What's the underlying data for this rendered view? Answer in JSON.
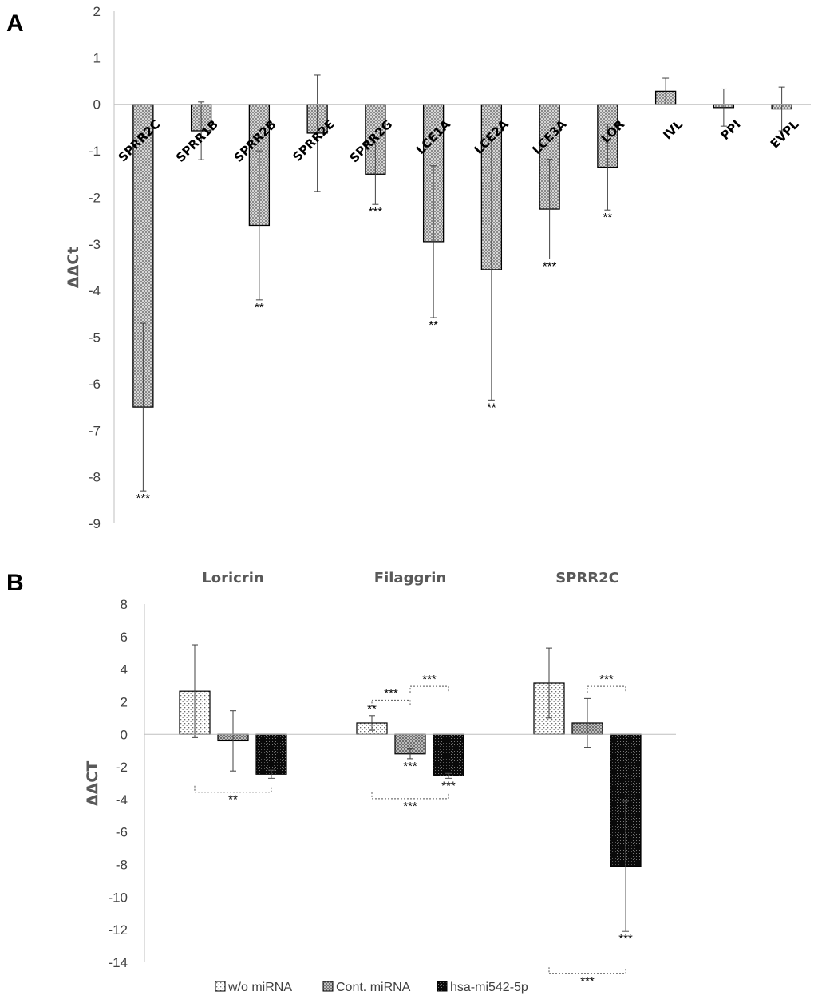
{
  "chart_data": [
    {
      "type": "bar",
      "panel_label": "A",
      "ylabel": "ΔΔCt",
      "ylim": [
        -9,
        2
      ],
      "yticks": [
        2,
        1,
        0,
        -1,
        -2,
        -3,
        -4,
        -5,
        -6,
        -7,
        -8,
        -9
      ],
      "categories": [
        "SPRR2C",
        "SPRR1B",
        "SPRR2B",
        "SPRR2E",
        "SPRR2G",
        "LCE1A",
        "LCE2A",
        "LCE3A",
        "LOR",
        "IVL",
        "PPI",
        "EVPL"
      ],
      "values": [
        -6.5,
        -0.57,
        -2.6,
        -0.62,
        -1.5,
        -2.95,
        -3.55,
        -2.25,
        -1.35,
        0.28,
        -0.07,
        -0.1
      ],
      "error": [
        1.8,
        0.62,
        1.6,
        1.25,
        0.65,
        1.63,
        2.8,
        1.07,
        0.92,
        0.28,
        0.4,
        0.47
      ],
      "significance": [
        "***",
        "",
        "**",
        "",
        "***",
        "**",
        "**",
        "***",
        "**",
        "",
        "",
        ""
      ],
      "colors": {
        "bar_fill": "#c4c4c4",
        "bar_stroke": "#000000"
      }
    },
    {
      "type": "bar",
      "panel_label": "B",
      "ylabel": "ΔΔCT",
      "ylim": [
        -14,
        8
      ],
      "yticks": [
        8,
        6,
        4,
        2,
        0,
        -2,
        -4,
        -6,
        -8,
        -10,
        -12,
        -14
      ],
      "categories": [
        "Loricrin",
        "Filaggrin",
        "SPRR2C"
      ],
      "series": [
        {
          "name": "w/o miRNA",
          "values": [
            2.65,
            0.7,
            3.15
          ],
          "error": [
            2.85,
            0.45,
            2.15
          ],
          "significance": [
            "",
            "**",
            ""
          ],
          "color": "#f2f2f2"
        },
        {
          "name": "Cont. miRNA",
          "values": [
            -0.4,
            -1.2,
            0.7
          ],
          "error": [
            1.85,
            0.3,
            1.5
          ],
          "significance": [
            "",
            "***",
            ""
          ],
          "color": "#9e9e9e"
        },
        {
          "name": "hsa-mi542-5p",
          "values": [
            -2.45,
            -2.55,
            -8.1
          ],
          "error": [
            0.25,
            0.15,
            4.0
          ],
          "significance": [
            "",
            "***",
            "***"
          ],
          "color": "#111111"
        }
      ],
      "comparisons": [
        {
          "group": "Loricrin",
          "from": "w/o miRNA",
          "to": "hsa-mi542-5p",
          "label": "**",
          "position": "below"
        },
        {
          "group": "Filaggrin",
          "from": "w/o miRNA",
          "to": "Cont. miRNA",
          "label": "***",
          "position": "above"
        },
        {
          "group": "Filaggrin",
          "from": "Cont. miRNA",
          "to": "hsa-mi542-5p",
          "label": "***",
          "position": "above"
        },
        {
          "group": "Filaggrin",
          "from": "w/o miRNA",
          "to": "hsa-mi542-5p",
          "label": "***",
          "position": "below"
        },
        {
          "group": "SPRR2C",
          "from": "Cont. miRNA",
          "to": "hsa-mi542-5p",
          "label": "***",
          "position": "above"
        },
        {
          "group": "SPRR2C",
          "from": "w/o miRNA",
          "to": "hsa-mi542-5p",
          "label": "***",
          "position": "below"
        }
      ],
      "legend_position": "bottom"
    }
  ]
}
